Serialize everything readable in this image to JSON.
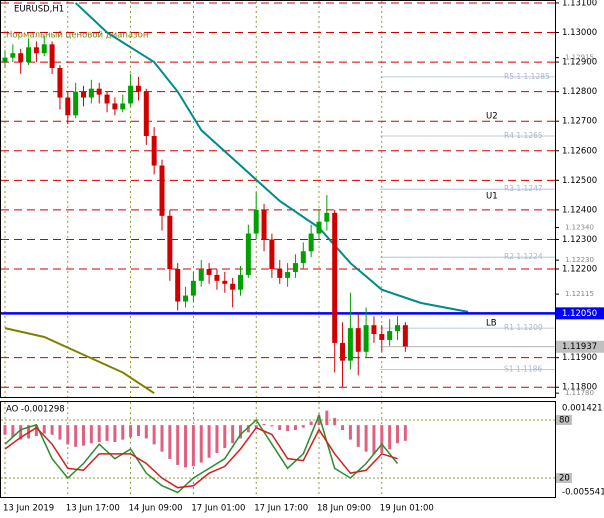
{
  "chart_data": {
    "type": "candlestick",
    "symbol": "EURUSD,H1",
    "indicator_note": "Нормальный ценовой диапазон",
    "ylim": [
      1.11767,
      1.1311
    ],
    "yticks": [
      {
        "value": 1.131,
        "label": "1.13100"
      },
      {
        "value": 1.13,
        "label": "1.13000"
      },
      {
        "value": 1.129,
        "label": "1.12900"
      },
      {
        "value": 1.128,
        "label": "1.12800"
      },
      {
        "value": 1.127,
        "label": "1.12700"
      },
      {
        "value": 1.126,
        "label": "1.12600"
      },
      {
        "value": 1.125,
        "label": "1.12500"
      },
      {
        "value": 1.124,
        "label": "1.12400"
      },
      {
        "value": 1.123,
        "label": "1.12300"
      },
      {
        "value": 1.122,
        "label": "1.12200"
      },
      {
        "value": 1.119,
        "label": "1.11900"
      },
      {
        "value": 1.118,
        "label": "1.11800"
      }
    ],
    "price_marks": [
      {
        "value": 1.12915,
        "label": "1.12915"
      },
      {
        "value": 1.1234,
        "label": "1.12340"
      },
      {
        "value": 1.1223,
        "label": "1.12230"
      },
      {
        "value": 1.12115,
        "label": "1.12115"
      },
      {
        "value": 1.1178,
        "label": "1.11780"
      }
    ],
    "lb_line": {
      "value": 1.1205,
      "label": "1.12050",
      "color": "#0000ff"
    },
    "current_price": {
      "value": 1.11937,
      "label": "1.11937"
    },
    "pivots": [
      {
        "value": 1.1285,
        "label": "R5.1 1.1285"
      },
      {
        "value": 1.1265,
        "label": "R4 1.1265"
      },
      {
        "value": 1.1247,
        "label": "R3 1.1247"
      },
      {
        "value": 1.1224,
        "label": "R2 1.1224"
      },
      {
        "value": 1.12,
        "label": "R1 1.1200"
      },
      {
        "value": 1.1186,
        "label": "S1 1.1186"
      }
    ],
    "zone_labels": [
      "U2",
      "U1",
      "LB"
    ],
    "xticks": [
      {
        "value": 0,
        "label": "13 Jun 2019"
      },
      {
        "value": 8,
        "label": "13 Jun 17:00"
      },
      {
        "value": 16,
        "label": "14 Jun 09:00"
      },
      {
        "value": 24,
        "label": "17 Jun 01:00"
      },
      {
        "value": 32,
        "label": "17 Jun 17:00"
      },
      {
        "value": 40,
        "label": "18 Jun 09:00"
      },
      {
        "value": 48,
        "label": "19 Jun 01:00"
      }
    ],
    "up_color": "#00a000",
    "down_color": "#d00000",
    "candles": [
      [
        1.129,
        1.1294,
        1.1288,
        1.12915
      ],
      [
        1.12915,
        1.1296,
        1.129,
        1.1293
      ],
      [
        1.1293,
        1.12945,
        1.1286,
        1.129
      ],
      [
        1.129,
        1.1298,
        1.1289,
        1.1295
      ],
      [
        1.1295,
        1.1297,
        1.129,
        1.1293
      ],
      [
        1.1293,
        1.1299,
        1.1292,
        1.1296
      ],
      [
        1.1296,
        1.1297,
        1.1286,
        1.1288
      ],
      [
        1.1288,
        1.1289,
        1.1274,
        1.1278
      ],
      [
        1.1278,
        1.128,
        1.1269,
        1.1272
      ],
      [
        1.1272,
        1.1283,
        1.1271,
        1.128
      ],
      [
        1.128,
        1.1282,
        1.1275,
        1.1278
      ],
      [
        1.1278,
        1.1284,
        1.1276,
        1.1281
      ],
      [
        1.1281,
        1.1283,
        1.1276,
        1.1279
      ],
      [
        1.1279,
        1.128,
        1.1273,
        1.1276
      ],
      [
        1.1276,
        1.1278,
        1.1272,
        1.1274
      ],
      [
        1.1274,
        1.1279,
        1.1273,
        1.1276
      ],
      [
        1.1276,
        1.1286,
        1.1275,
        1.1282
      ],
      [
        1.1282,
        1.1285,
        1.1277,
        1.128
      ],
      [
        1.128,
        1.1281,
        1.1262,
        1.1265
      ],
      [
        1.1265,
        1.1268,
        1.1252,
        1.1255
      ],
      [
        1.1255,
        1.1257,
        1.1233,
        1.1238
      ],
      [
        1.1238,
        1.124,
        1.1216,
        1.122
      ],
      [
        1.122,
        1.1222,
        1.1206,
        1.1209
      ],
      [
        1.1209,
        1.1214,
        1.1207,
        1.1211
      ],
      [
        1.1211,
        1.1219,
        1.1209,
        1.1216
      ],
      [
        1.1216,
        1.1223,
        1.1214,
        1.122
      ],
      [
        1.122,
        1.1222,
        1.1215,
        1.1218
      ],
      [
        1.1218,
        1.122,
        1.1213,
        1.1216
      ],
      [
        1.1216,
        1.1219,
        1.1212,
        1.1215
      ],
      [
        1.1215,
        1.1217,
        1.1207,
        1.1213
      ],
      [
        1.1213,
        1.1221,
        1.1211,
        1.1218
      ],
      [
        1.1218,
        1.1235,
        1.1217,
        1.1232
      ],
      [
        1.1232,
        1.1246,
        1.123,
        1.124
      ],
      [
        1.124,
        1.1242,
        1.1226,
        1.123
      ],
      [
        1.123,
        1.1232,
        1.1217,
        1.122
      ],
      [
        1.122,
        1.1223,
        1.1215,
        1.1217
      ],
      [
        1.1217,
        1.1222,
        1.1214,
        1.1219
      ],
      [
        1.1219,
        1.1225,
        1.1217,
        1.1222
      ],
      [
        1.1222,
        1.1229,
        1.122,
        1.1226
      ],
      [
        1.1226,
        1.1235,
        1.1224,
        1.1232
      ],
      [
        1.1232,
        1.124,
        1.123,
        1.1236
      ],
      [
        1.1236,
        1.1245,
        1.1233,
        1.1239
      ],
      [
        1.1239,
        1.124,
        1.1185,
        1.1195
      ],
      [
        1.1195,
        1.1202,
        1.118,
        1.1189
      ],
      [
        1.1189,
        1.1212,
        1.1186,
        1.12
      ],
      [
        1.12,
        1.1205,
        1.1184,
        1.1192
      ],
      [
        1.1192,
        1.1207,
        1.119,
        1.1201
      ],
      [
        1.1201,
        1.1204,
        1.1195,
        1.1198
      ],
      [
        1.1198,
        1.1201,
        1.1192,
        1.1196
      ],
      [
        1.1196,
        1.1203,
        1.1194,
        1.1199
      ],
      [
        1.1199,
        1.1204,
        1.1196,
        1.1201
      ],
      [
        1.1201,
        1.1202,
        1.1192,
        1.11937
      ]
    ],
    "ma_lines": [
      {
        "color": "#008b8b",
        "x": [
          9,
          13,
          19,
          22,
          25,
          30,
          35,
          40,
          44,
          48,
          53,
          59
        ],
        "values": [
          1.131,
          1.13,
          1.129,
          1.128,
          1.1267,
          1.1255,
          1.1243,
          1.1234,
          1.1222,
          1.1213,
          1.12085,
          1.12055
        ]
      },
      {
        "color": "#808000",
        "x": [
          0,
          5,
          10,
          15,
          19
        ],
        "values": [
          1.12,
          1.1197,
          1.1191,
          1.1185,
          1.1178
        ]
      }
    ],
    "ao": {
      "title": "AO -0.001298",
      "ylim": [
        -0.005541,
        0.001421
      ],
      "yticks": [
        {
          "value": 0.001421,
          "label": "0.001421"
        },
        {
          "value": -0.005541,
          "label": "-0.005541"
        }
      ],
      "color": "#e06080",
      "values": [
        -0.0008,
        -0.001,
        -0.0012,
        -0.0011,
        -0.0009,
        -0.0007,
        -0.0008,
        -0.0012,
        -0.0016,
        -0.0018,
        -0.0017,
        -0.0015,
        -0.0014,
        -0.0013,
        -0.0014,
        -0.0012,
        -0.001,
        -0.0009,
        -0.0011,
        -0.0016,
        -0.0022,
        -0.0028,
        -0.0033,
        -0.0035,
        -0.0034,
        -0.0031,
        -0.0027,
        -0.0023,
        -0.0019,
        -0.0015,
        -0.0011,
        -0.0006,
        -0.0002,
        0.0001,
        -0.0001,
        -0.0004,
        -0.0005,
        -0.0004,
        -0.0002,
        0.0003,
        0.0008,
        0.0012,
        0.0006,
        -0.0004,
        -0.0012,
        -0.0018,
        -0.0022,
        -0.0024,
        -0.0023,
        -0.002,
        -0.0015,
        -0.001298
      ]
    },
    "stoch": {
      "ylim": [
        0,
        100
      ],
      "levels": [
        80,
        20
      ],
      "x": [
        0,
        2,
        4,
        6,
        8,
        10,
        12,
        14,
        16,
        18,
        20,
        22,
        24,
        26,
        28,
        30,
        32,
        34,
        36,
        38,
        40,
        42,
        44,
        46,
        48,
        50
      ],
      "series": [
        {
          "color": "#2e8b2e",
          "values": [
            55,
            70,
            75,
            40,
            20,
            35,
            55,
            40,
            50,
            25,
            12,
            5,
            20,
            30,
            40,
            65,
            80,
            55,
            30,
            45,
            85,
            30,
            20,
            35,
            55,
            35
          ]
        },
        {
          "color": "#d02020",
          "values": [
            50,
            62,
            72,
            55,
            30,
            28,
            45,
            45,
            45,
            35,
            20,
            10,
            12,
            25,
            32,
            50,
            72,
            65,
            40,
            38,
            70,
            45,
            25,
            28,
            45,
            40
          ]
        }
      ]
    }
  }
}
